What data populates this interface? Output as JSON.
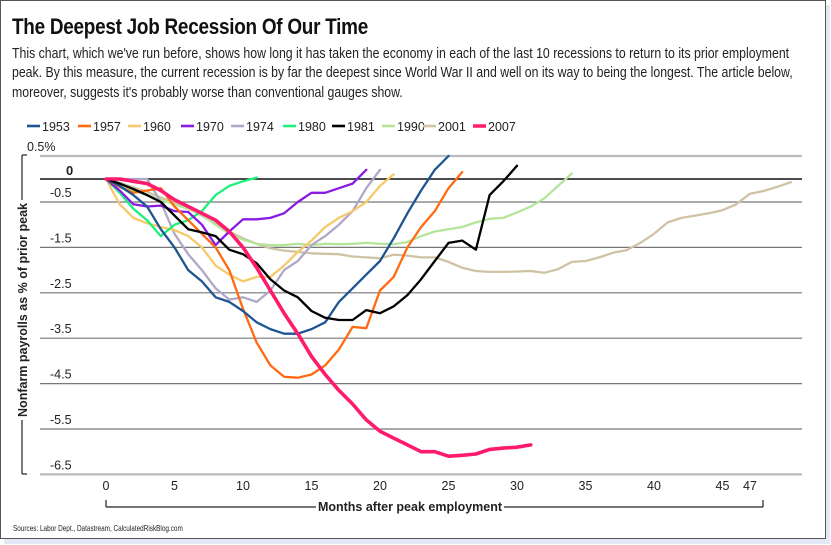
{
  "header": {
    "title": "The Deepest Job Recession Of Our Time",
    "subtitle": "This chart, which we've run before, shows how long it has taken the economy in each of the last 10 recessions to return to its prior employment peak. By this measure, the current recession is by far the deepest since World War II and well on its way to being the longest. The article below, moreover, suggests it's probably worse than conventional gauges show."
  },
  "source": "Sources: Labor Dept., Datastream, CalculatedRiskBlog.com",
  "chart_data": {
    "type": "line",
    "title": "The Deepest Job Recession Of Our Time",
    "xlabel": "Months after peak employment",
    "ylabel": "Nonfarm payrolls as % of prior peak",
    "xlim": [
      0,
      51
    ],
    "ylim": [
      -6.5,
      0.5
    ],
    "x_ticks": [
      "0",
      "5",
      "10",
      "15",
      "20",
      "25",
      "30",
      "35",
      "40",
      "45",
      "47"
    ],
    "x_tick_values": [
      0,
      5,
      10,
      15,
      20,
      25,
      30,
      35,
      40,
      45,
      47
    ],
    "y_ticks": [
      "0.5%",
      "0",
      "-0.5",
      "-1.5",
      "-2.5",
      "-3.5",
      "-4.5",
      "-5.5",
      "-6.5"
    ],
    "y_tick_values": [
      0.5,
      0,
      -0.5,
      -1.5,
      -2.5,
      -3.5,
      -4.5,
      -5.5,
      -6.5
    ],
    "grid": true,
    "legend_position": "top",
    "series": [
      {
        "name": "1953",
        "color": "#1f5591",
        "values": [
          0,
          -0.15,
          -0.35,
          -0.6,
          -1.1,
          -1.5,
          -2.0,
          -2.25,
          -2.6,
          -2.7,
          -2.9,
          -3.15,
          -3.3,
          -3.4,
          -3.4,
          -3.3,
          -3.15,
          -2.7,
          -2.4,
          -2.1,
          -1.8,
          -1.3,
          -0.75,
          -0.25,
          0.2,
          0.5
        ]
      },
      {
        "name": "1957",
        "color": "#ff6a13",
        "values": [
          0,
          -0.17,
          -0.3,
          -0.25,
          -0.2,
          -0.6,
          -0.9,
          -1.2,
          -1.5,
          -2.0,
          -2.85,
          -3.6,
          -4.1,
          -4.35,
          -4.37,
          -4.3,
          -4.1,
          -3.75,
          -3.25,
          -3.28,
          -2.45,
          -2.15,
          -1.5,
          -1.05,
          -0.7,
          -0.2,
          0.15
        ]
      },
      {
        "name": "1960",
        "color": "#f6c96b",
        "values": [
          0,
          -0.55,
          -0.85,
          -0.97,
          -1.05,
          -1.12,
          -1.25,
          -1.5,
          -1.9,
          -2.1,
          -2.25,
          -2.15,
          -2.15,
          -1.9,
          -1.6,
          -1.35,
          -1.05,
          -0.85,
          -0.7,
          -0.5,
          -0.15,
          0.1
        ]
      },
      {
        "name": "1970",
        "color": "#8a1be3",
        "values": [
          0,
          -0.25,
          -0.55,
          -0.6,
          -0.58,
          -0.7,
          -0.72,
          -1.0,
          -1.45,
          -1.15,
          -0.88,
          -0.88,
          -0.85,
          -0.75,
          -0.5,
          -0.3,
          -0.3,
          -0.2,
          -0.1,
          0.2
        ]
      },
      {
        "name": "1974",
        "color": "#b0a8c8",
        "values": [
          0,
          0,
          0,
          0,
          -0.5,
          -1.2,
          -1.65,
          -2.0,
          -2.4,
          -2.65,
          -2.6,
          -2.7,
          -2.45,
          -2.0,
          -1.8,
          -1.45,
          -1.25,
          -1.0,
          -0.7,
          -0.2,
          0.2
        ]
      },
      {
        "name": "1980",
        "color": "#1ef07c",
        "values": [
          0,
          -0.3,
          -0.65,
          -0.9,
          -1.25,
          -1.0,
          -0.9,
          -0.7,
          -0.35,
          -0.15,
          -0.05,
          0.03
        ]
      },
      {
        "name": "1981",
        "color": "#000000",
        "values": [
          0,
          -0.1,
          -0.22,
          -0.35,
          -0.5,
          -0.8,
          -1.1,
          -1.17,
          -1.25,
          -1.55,
          -1.65,
          -1.85,
          -2.2,
          -2.45,
          -2.6,
          -2.9,
          -3.05,
          -3.1,
          -3.1,
          -2.88,
          -2.95,
          -2.8,
          -2.55,
          -2.2,
          -1.8,
          -1.4,
          -1.35,
          -1.55,
          -0.35,
          -0.05,
          0.29
        ]
      },
      {
        "name": "1990",
        "color": "#b5e59b",
        "values": [
          0,
          -0.12,
          -0.25,
          -0.35,
          -0.45,
          -0.55,
          -0.65,
          -0.78,
          -1.0,
          -1.2,
          -1.33,
          -1.42,
          -1.45,
          -1.45,
          -1.42,
          -1.45,
          -1.42,
          -1.43,
          -1.42,
          -1.4,
          -1.42,
          -1.43,
          -1.38,
          -1.25,
          -1.15,
          -1.1,
          -1.05,
          -0.95,
          -0.87,
          -0.85,
          -0.73,
          -0.6,
          -0.42,
          -0.15,
          0.12
        ]
      },
      {
        "name": "2001",
        "color": "#cfc3a3",
        "values": [
          0,
          -0.08,
          -0.18,
          -0.28,
          -0.4,
          -0.52,
          -0.65,
          -0.8,
          -0.98,
          -1.15,
          -1.3,
          -1.42,
          -1.52,
          -1.57,
          -1.6,
          -1.63,
          -1.64,
          -1.65,
          -1.7,
          -1.72,
          -1.74,
          -1.66,
          -1.68,
          -1.72,
          -1.72,
          -1.82,
          -1.95,
          -2.02,
          -2.04,
          -2.04,
          -2.03,
          -2.02,
          -2.06,
          -1.98,
          -1.82,
          -1.8,
          -1.72,
          -1.62,
          -1.56,
          -1.4,
          -1.2,
          -0.95,
          -0.85,
          -0.8,
          -0.75,
          -0.68,
          -0.55,
          -0.32,
          -0.26,
          -0.17,
          -0.07
        ]
      },
      {
        "name": "2007",
        "color": "#ff1a6e",
        "values": [
          0,
          0,
          -0.05,
          -0.1,
          -0.25,
          -0.45,
          -0.6,
          -0.75,
          -0.9,
          -1.15,
          -1.5,
          -1.95,
          -2.45,
          -2.95,
          -3.4,
          -3.9,
          -4.3,
          -4.65,
          -4.95,
          -5.3,
          -5.55,
          -5.7,
          -5.85,
          -6.0,
          -6.0,
          -6.1,
          -6.08,
          -6.05,
          -5.95,
          -5.92,
          -5.9,
          -5.85
        ]
      }
    ]
  }
}
